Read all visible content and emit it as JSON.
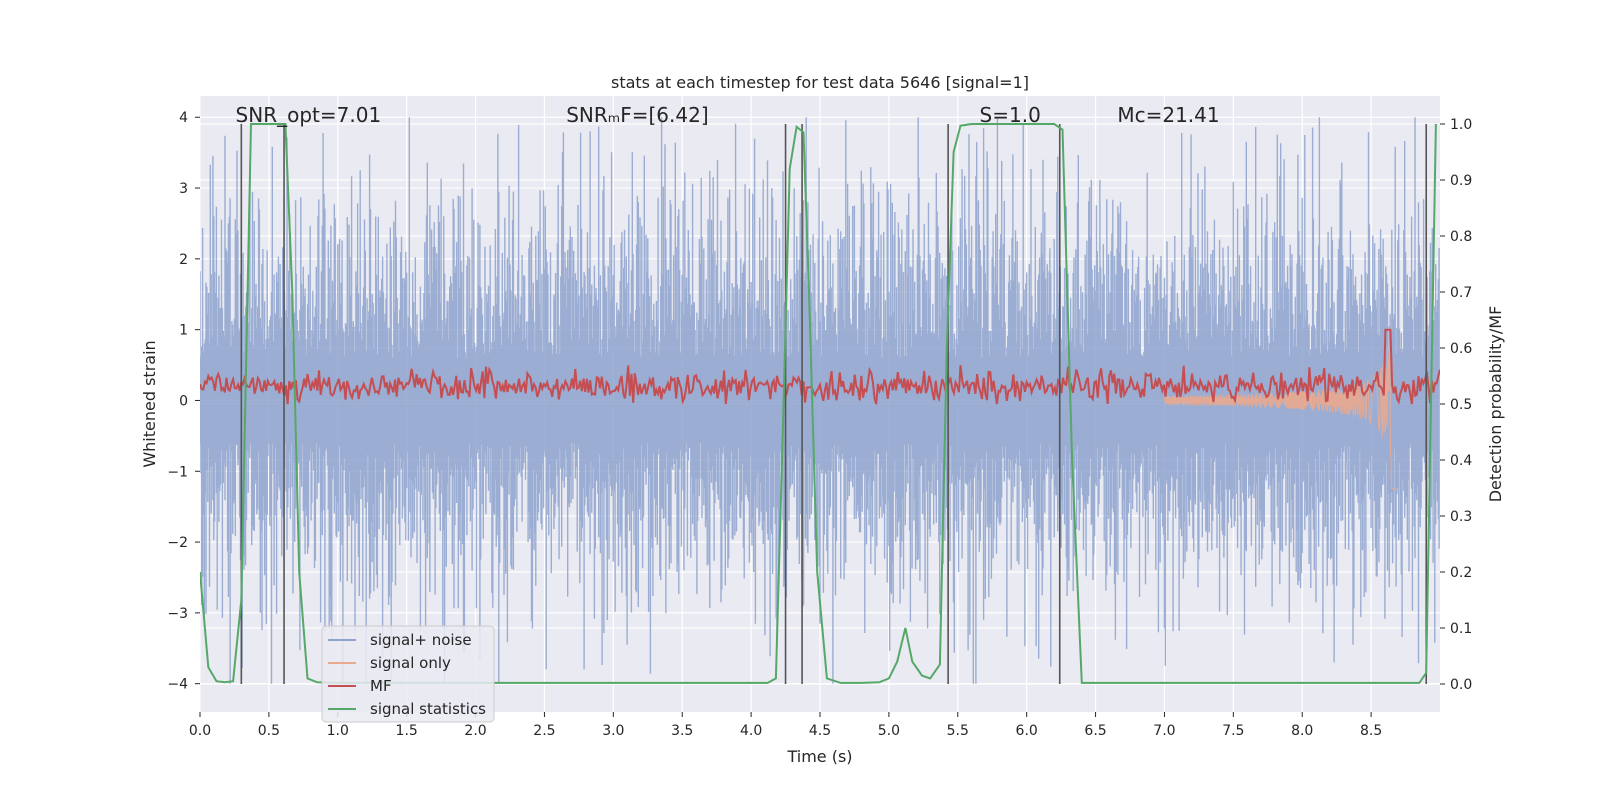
{
  "chart_data": {
    "type": "line",
    "title": "stats at each timestep for test data 5646 [signal=1]",
    "xlabel": "Time (s)",
    "ylabel": "Whitened strain",
    "y2label": "Detection probability/MF",
    "xlim": [
      0.0,
      9.0
    ],
    "ylim": [
      -4.4,
      4.3
    ],
    "y2lim": [
      -0.05,
      1.05
    ],
    "x_ticks": [
      0.0,
      0.5,
      1.0,
      1.5,
      2.0,
      2.5,
      3.0,
      3.5,
      4.0,
      4.5,
      5.0,
      5.5,
      6.0,
      6.5,
      7.0,
      7.5,
      8.0,
      8.5
    ],
    "x_tick_labels": [
      "0.0",
      "0.5",
      "1.0",
      "1.5",
      "2.0",
      "2.5",
      "3.0",
      "3.5",
      "4.0",
      "4.5",
      "5.0",
      "5.5",
      "6.0",
      "6.5",
      "7.0",
      "7.5",
      "8.0",
      "8.5"
    ],
    "y_ticks": [
      4,
      3,
      2,
      1,
      0,
      -1,
      -2,
      -3,
      -4
    ],
    "y_tick_labels": [
      "4",
      "3",
      "2",
      "1",
      "0",
      "−1",
      "−2",
      "−3",
      "−4"
    ],
    "y2_ticks": [
      1.0,
      0.9,
      0.8,
      0.7,
      0.6,
      0.5,
      0.4,
      0.3,
      0.2,
      0.1,
      0.0
    ],
    "y2_tick_labels": [
      "1.0",
      "0.9",
      "0.8",
      "0.7",
      "0.6",
      "0.5",
      "0.4",
      "0.3",
      "0.2",
      "0.1",
      "0.0"
    ],
    "annotations": [
      {
        "id": "snr-opt",
        "text": "SNR_opt=7.01",
        "x": 0.2,
        "y": 4.0
      },
      {
        "id": "snr-mf",
        "text": "SNRₘF=[6.42]",
        "x": 2.6,
        "y": 4.0
      },
      {
        "id": "s-value",
        "text": "S=1.0",
        "x": 5.6,
        "y": 4.0
      },
      {
        "id": "mc-value",
        "text": "Mc=21.41",
        "x": 6.6,
        "y": 4.0
      }
    ],
    "vertical_lines_x": [
      0.3,
      0.61,
      4.25,
      4.37,
      5.43,
      6.24,
      8.9
    ],
    "legend": {
      "location": "lower-left",
      "entries": [
        {
          "label": "signal+ noise",
          "color": "#8da2cc"
        },
        {
          "label": "signal only",
          "color": "#eaa98e"
        },
        {
          "label": "MF",
          "color": "#c44e52"
        },
        {
          "label": "signal statistics",
          "color": "#55a868"
        }
      ]
    },
    "noise_series": {
      "name": "signal+ noise",
      "color": "#8da2cc",
      "typical_abs_amplitude": 1.6,
      "peak_amplitude": 4.0,
      "samples_per_second": 160
    },
    "signal_only_series": {
      "name": "signal only",
      "color": "#eaa98e",
      "merger_time": 8.65,
      "peak_amplitude": 1.5,
      "chirp_start": 7.0
    },
    "mf_series": {
      "name": "MF",
      "color": "#c44e52",
      "baseline": 0.2,
      "fluctuation": 0.15,
      "spike_time": 8.62,
      "spike_value": 1.0
    },
    "statistics_series": {
      "name": "signal statistics",
      "color": "#55a868",
      "x": [
        0.0,
        0.06,
        0.12,
        0.18,
        0.24,
        0.3,
        0.37,
        0.45,
        0.55,
        0.62,
        0.67,
        0.72,
        0.78,
        0.85,
        1.0,
        2.0,
        3.0,
        4.0,
        4.12,
        4.18,
        4.23,
        4.28,
        4.33,
        4.38,
        4.42,
        4.48,
        4.55,
        4.65,
        4.8,
        4.93,
        5.0,
        5.06,
        5.12,
        5.17,
        5.24,
        5.3,
        5.37,
        5.42,
        5.47,
        5.52,
        5.6,
        6.0,
        6.2,
        6.26,
        6.33,
        6.4,
        7.0,
        8.0,
        8.85,
        8.9,
        8.97
      ],
      "y": [
        0.2,
        0.03,
        0.005,
        0.003,
        0.005,
        0.15,
        1.0,
        1.0,
        1.0,
        1.0,
        0.7,
        0.2,
        0.01,
        0.003,
        0.002,
        0.002,
        0.002,
        0.002,
        0.002,
        0.01,
        0.45,
        0.92,
        0.995,
        0.985,
        0.7,
        0.2,
        0.01,
        0.002,
        0.002,
        0.003,
        0.01,
        0.04,
        0.1,
        0.04,
        0.015,
        0.01,
        0.035,
        0.6,
        0.95,
        0.997,
        1.0,
        1.0,
        1.0,
        0.99,
        0.4,
        0.002,
        0.002,
        0.002,
        0.002,
        0.02,
        1.0
      ]
    }
  }
}
